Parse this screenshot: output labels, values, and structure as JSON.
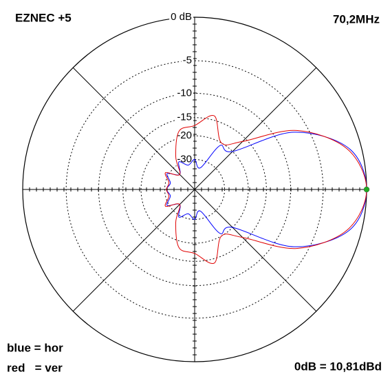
{
  "chart_data": {
    "type": "polar",
    "title": "EZNEC +5",
    "subtitle": "70,2MHz",
    "legend_text": [
      "blue = hor",
      "red   = ver"
    ],
    "annotation": "0dB = 10,81dBd",
    "radial_scale": "arrl-log",
    "rticks": [
      {
        "value": 0,
        "label": "0 dB"
      },
      -5,
      -10,
      -15,
      -20,
      -30
    ],
    "theta": [
      0,
      15,
      30,
      45,
      60,
      75,
      90,
      105,
      120,
      135,
      150,
      165,
      180,
      195,
      210,
      225,
      240,
      255,
      270,
      285,
      300,
      315,
      330,
      345
    ],
    "series": [
      {
        "name": "hor",
        "color": "#0000ff",
        "values": [
          0,
          -1.3,
          -7,
          -20,
          -21,
          -35,
          -30,
          -33,
          -29,
          -36,
          -29,
          -33,
          -31,
          -33,
          -29,
          -36,
          -29,
          -33,
          -30,
          -35,
          -21,
          -20,
          -7,
          -1.3
        ]
      },
      {
        "name": "ver",
        "color": "#e00000",
        "values": [
          0,
          -1.5,
          -6.5,
          -16,
          -20,
          -14,
          -17,
          -18,
          -26,
          -36,
          -28,
          -32,
          -31,
          -32,
          -28,
          -36,
          -26,
          -18,
          -17,
          -14,
          -20,
          -16,
          -6.5,
          -1.5
        ]
      }
    ],
    "marker_color": "#22aa22"
  }
}
